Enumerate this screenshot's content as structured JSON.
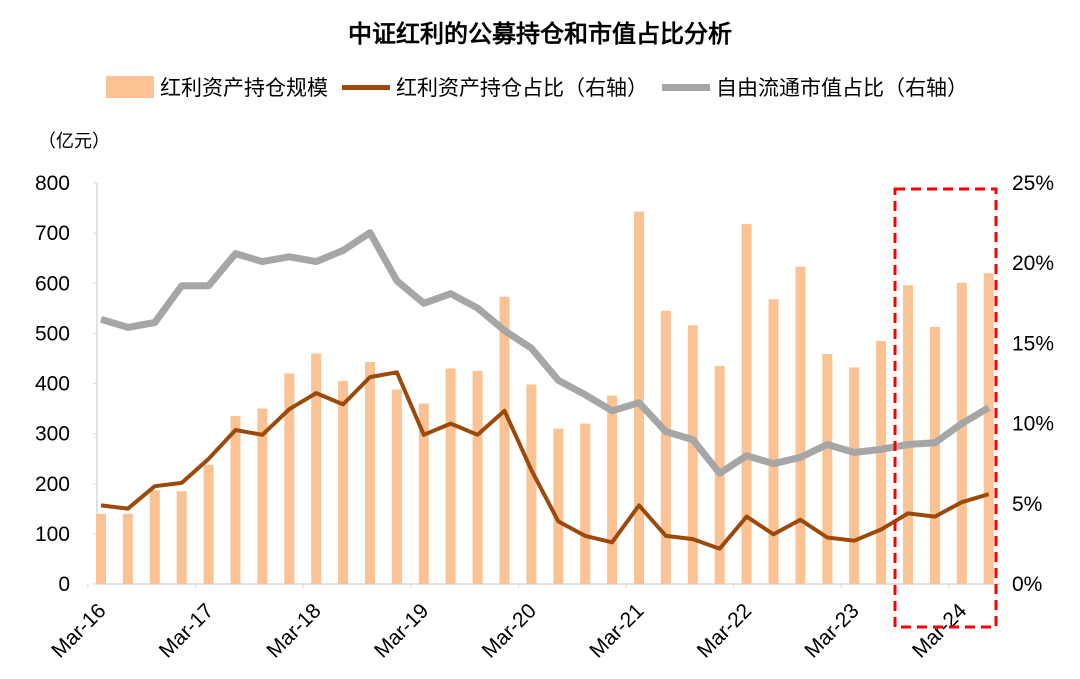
{
  "chart_data": {
    "type": "bar",
    "title": "中证红利的公募持仓和市值占比分析",
    "ylabel": "（亿元）",
    "ylim": [
      0,
      800
    ],
    "yticks": [
      0,
      100,
      200,
      300,
      400,
      500,
      600,
      700,
      800
    ],
    "y2lim": [
      0,
      25
    ],
    "y2ticks": [
      "0%",
      "5%",
      "10%",
      "15%",
      "20%",
      "25%"
    ],
    "xtick_labels": [
      "Mar-16",
      "Mar-17",
      "Mar-18",
      "Mar-19",
      "Mar-20",
      "Mar-21",
      "Mar-22",
      "Mar-23",
      "Mar-24"
    ],
    "categories": [
      "Mar-16",
      "Jun-16",
      "Sep-16",
      "Dec-16",
      "Mar-17",
      "Jun-17",
      "Sep-17",
      "Dec-17",
      "Mar-18",
      "Jun-18",
      "Sep-18",
      "Dec-18",
      "Mar-19",
      "Jun-19",
      "Sep-19",
      "Dec-19",
      "Mar-20",
      "Jun-20",
      "Sep-20",
      "Dec-20",
      "Mar-21",
      "Jun-21",
      "Sep-21",
      "Dec-21",
      "Mar-22",
      "Jun-22",
      "Sep-22",
      "Dec-22",
      "Mar-23",
      "Jun-23",
      "Sep-23",
      "Dec-23",
      "Mar-24",
      "Jun-24"
    ],
    "series": [
      {
        "name": "红利资产持仓规模",
        "type": "bar",
        "axis": "left",
        "color": "#FBC393",
        "values": [
          140,
          140,
          187,
          185,
          238,
          335,
          350,
          420,
          460,
          405,
          443,
          388,
          360,
          430,
          425,
          573,
          398,
          310,
          320,
          376,
          743,
          545,
          516,
          435,
          718,
          568,
          633,
          459,
          432,
          485,
          596,
          513,
          601,
          620
        ]
      },
      {
        "name": "红利资产持仓占比（右轴）",
        "type": "line",
        "axis": "right",
        "color": "#9C4A0C",
        "values": [
          4.9,
          4.7,
          6.1,
          6.3,
          7.8,
          9.6,
          9.3,
          10.9,
          11.9,
          11.2,
          12.9,
          13.2,
          9.3,
          10.0,
          9.3,
          10.8,
          7.1,
          3.9,
          3.0,
          2.6,
          4.9,
          3.0,
          2.8,
          2.2,
          4.2,
          3.1,
          4.0,
          2.9,
          2.7,
          3.4,
          4.4,
          4.2,
          5.1,
          5.6
        ]
      },
      {
        "name": "自由流通市值占比（右轴）",
        "type": "line",
        "axis": "right",
        "color": "#A6A6A6",
        "values": [
          16.5,
          16.0,
          16.3,
          18.6,
          18.6,
          20.6,
          20.1,
          20.4,
          20.1,
          20.8,
          21.9,
          18.9,
          17.5,
          18.1,
          17.2,
          15.8,
          14.7,
          12.7,
          11.8,
          10.8,
          11.3,
          9.5,
          9.0,
          6.9,
          8.0,
          7.5,
          7.9,
          8.7,
          8.2,
          8.4,
          8.7,
          8.8,
          10.0,
          11.0
        ]
      }
    ],
    "annotations": [
      {
        "type": "dashed-rect",
        "color": "#FF0000",
        "covers": [
          "Sep-23",
          "Jun-24"
        ]
      }
    ],
    "grid": false,
    "legend_position": "top"
  },
  "legend": {
    "bar": "红利资产持仓规模",
    "line1": "红利资产持仓占比（右轴）",
    "line2": "自由流通市值占比（右轴）"
  }
}
